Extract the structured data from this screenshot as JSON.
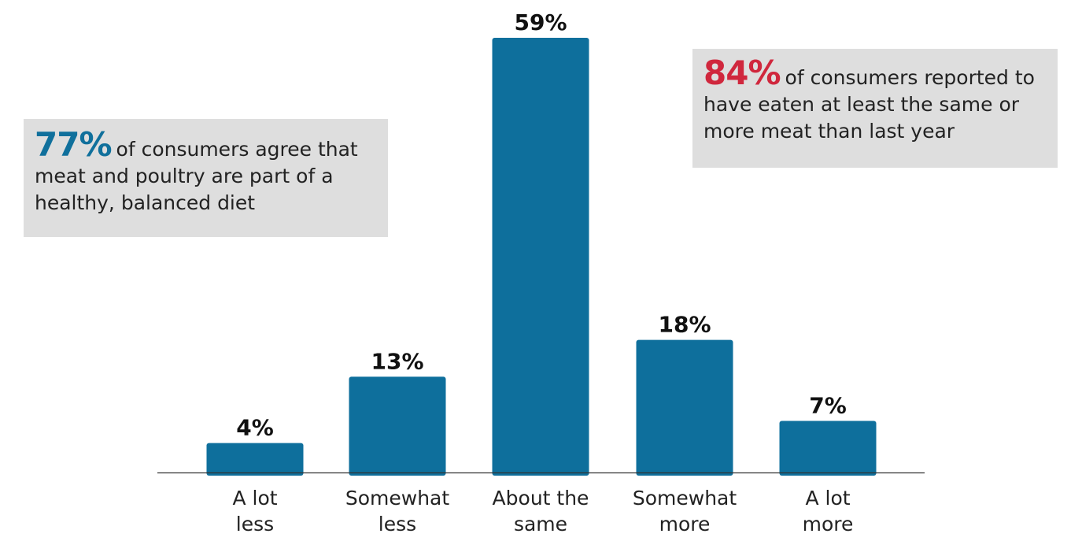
{
  "chart_data": {
    "type": "bar",
    "categories": [
      [
        "A lot",
        "less"
      ],
      [
        "Somewhat",
        "less"
      ],
      [
        "About the",
        "same"
      ],
      [
        "Somewhat",
        "more"
      ],
      [
        "A lot",
        "more"
      ]
    ],
    "values": [
      4,
      13,
      59,
      18,
      7
    ],
    "data_labels": [
      "4%",
      "13%",
      "59%",
      "18%",
      "7%"
    ],
    "bar_color": "#0e6f9c",
    "ylim": [
      0,
      59
    ],
    "grid": false
  },
  "callouts": {
    "left": {
      "stat": "77%",
      "stat_color": "#10709c",
      "text": "of consumers agree that meat and poultry are part of a healthy, balanced diet"
    },
    "right": {
      "stat": "84%",
      "stat_color": "#d0273d",
      "text": "of consumers reported to have eaten at least the same or more meat than last year"
    }
  }
}
